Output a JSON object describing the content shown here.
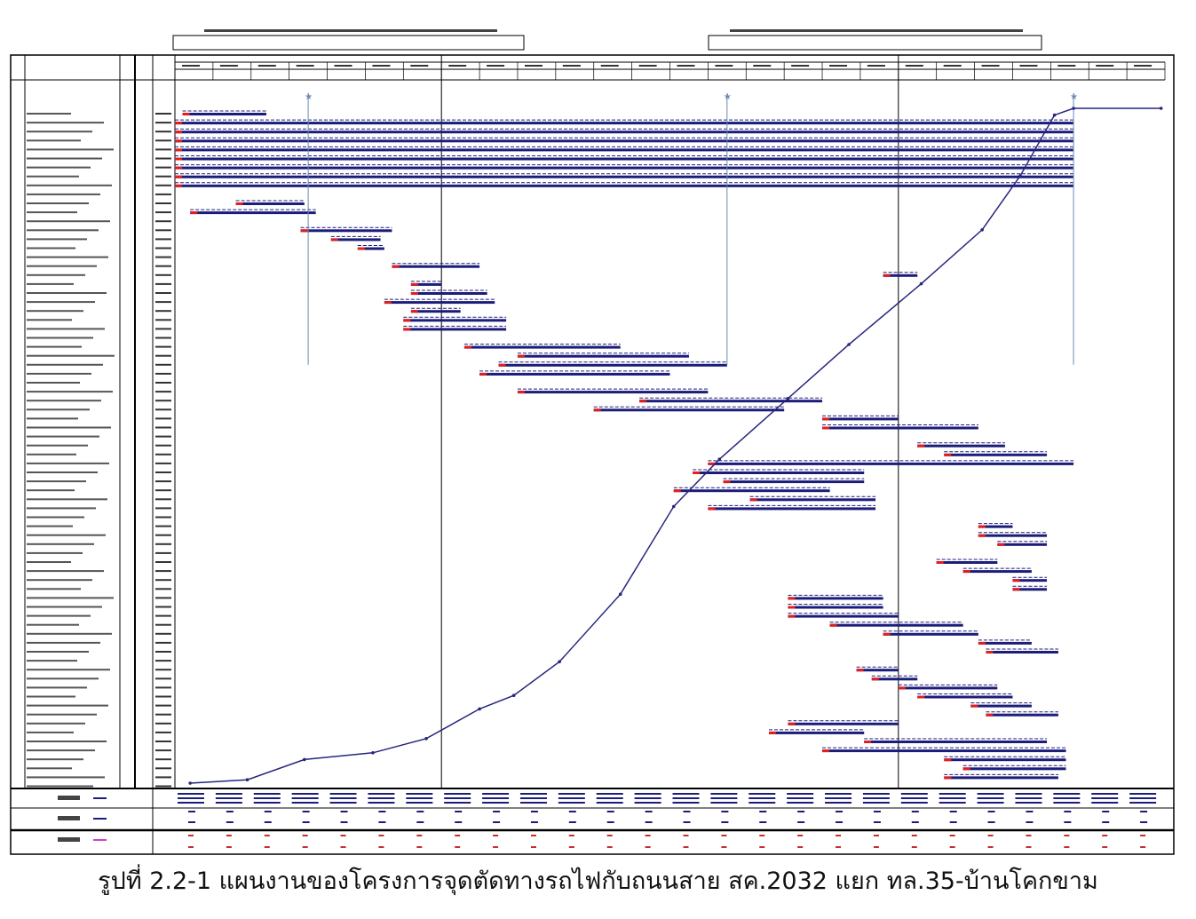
{
  "caption": "รูปที่ 2.2-1 แผนงานของโครงการจุดตัดทางรถไฟกับถนนสาย สค.2032 แยก ทล.35-บ้านโคกขาม",
  "colors": {
    "plan_bar": "#1c1c7a",
    "start_marker": "#e02020",
    "s_curve": "#26267e",
    "legend_pink": "#d040c0",
    "grid": "#000000"
  },
  "chart_data": {
    "type": "gantt",
    "time_unit": "month",
    "time_range": [
      0,
      26
    ],
    "year_dividers": [
      7,
      19
    ],
    "tasks": [
      {
        "row": 0,
        "start": 0.2,
        "end": 2.4
      },
      {
        "row": 1,
        "start": 0,
        "end": 23.6
      },
      {
        "row": 2,
        "start": 0,
        "end": 23.6
      },
      {
        "row": 3,
        "start": 0,
        "end": 23.6
      },
      {
        "row": 4,
        "start": 0,
        "end": 23.6
      },
      {
        "row": 5,
        "start": 0,
        "end": 23.6
      },
      {
        "row": 6,
        "start": 0,
        "end": 23.6
      },
      {
        "row": 7,
        "start": 0,
        "end": 23.6
      },
      {
        "row": 8,
        "start": 0,
        "end": 23.6
      },
      {
        "row": 10,
        "start": 1.6,
        "end": 3.4
      },
      {
        "row": 11,
        "start": 0.4,
        "end": 3.7
      },
      {
        "row": 13,
        "start": 3.3,
        "end": 5.7
      },
      {
        "row": 14,
        "start": 4.1,
        "end": 5.4
      },
      {
        "row": 15,
        "start": 4.8,
        "end": 5.5
      },
      {
        "row": 17,
        "start": 5.7,
        "end": 8.0
      },
      {
        "row": 18,
        "start": 18.6,
        "end": 19.5
      },
      {
        "row": 19,
        "start": 6.2,
        "end": 7.0
      },
      {
        "row": 20,
        "start": 6.2,
        "end": 8.2
      },
      {
        "row": 21,
        "start": 5.5,
        "end": 8.4
      },
      {
        "row": 22,
        "start": 6.2,
        "end": 7.5
      },
      {
        "row": 23,
        "start": 6.0,
        "end": 8.7
      },
      {
        "row": 24,
        "start": 6.0,
        "end": 8.7
      },
      {
        "row": 26,
        "start": 7.6,
        "end": 11.7
      },
      {
        "row": 27,
        "start": 9.0,
        "end": 13.5
      },
      {
        "row": 28,
        "start": 8.5,
        "end": 14.5
      },
      {
        "row": 29,
        "start": 8.0,
        "end": 13.0
      },
      {
        "row": 31,
        "start": 9.0,
        "end": 14.0
      },
      {
        "row": 32,
        "start": 12.2,
        "end": 17.0
      },
      {
        "row": 33,
        "start": 11.0,
        "end": 16.0
      },
      {
        "row": 34,
        "start": 17.0,
        "end": 19.0
      },
      {
        "row": 35,
        "start": 17.0,
        "end": 21.1
      },
      {
        "row": 37,
        "start": 19.5,
        "end": 21.8
      },
      {
        "row": 38,
        "start": 20.2,
        "end": 22.9
      },
      {
        "row": 39,
        "start": 14.0,
        "end": 23.6
      },
      {
        "row": 40,
        "start": 13.6,
        "end": 18.1
      },
      {
        "row": 41,
        "start": 14.4,
        "end": 18.1
      },
      {
        "row": 42,
        "start": 13.1,
        "end": 17.2
      },
      {
        "row": 43,
        "start": 15.1,
        "end": 18.4
      },
      {
        "row": 44,
        "start": 14.0,
        "end": 18.4
      },
      {
        "row": 46,
        "start": 21.1,
        "end": 22.0
      },
      {
        "row": 47,
        "start": 21.1,
        "end": 22.9
      },
      {
        "row": 48,
        "start": 21.6,
        "end": 22.9
      },
      {
        "row": 50,
        "start": 20.0,
        "end": 21.6
      },
      {
        "row": 51,
        "start": 20.7,
        "end": 22.5
      },
      {
        "row": 52,
        "start": 22.0,
        "end": 22.9
      },
      {
        "row": 53,
        "start": 22.0,
        "end": 22.9
      },
      {
        "row": 54,
        "start": 16.1,
        "end": 18.6
      },
      {
        "row": 55,
        "start": 16.1,
        "end": 18.6
      },
      {
        "row": 56,
        "start": 16.1,
        "end": 19.0
      },
      {
        "row": 57,
        "start": 17.2,
        "end": 20.7
      },
      {
        "row": 58,
        "start": 18.6,
        "end": 21.1
      },
      {
        "row": 59,
        "start": 21.1,
        "end": 22.5
      },
      {
        "row": 60,
        "start": 21.3,
        "end": 23.2
      },
      {
        "row": 62,
        "start": 17.9,
        "end": 19.0
      },
      {
        "row": 63,
        "start": 18.3,
        "end": 19.5
      },
      {
        "row": 64,
        "start": 19.0,
        "end": 21.6
      },
      {
        "row": 65,
        "start": 19.5,
        "end": 22.0
      },
      {
        "row": 66,
        "start": 20.9,
        "end": 22.5
      },
      {
        "row": 67,
        "start": 21.3,
        "end": 23.2
      },
      {
        "row": 68,
        "start": 16.1,
        "end": 19.0
      },
      {
        "row": 69,
        "start": 15.6,
        "end": 18.1
      },
      {
        "row": 70,
        "start": 18.1,
        "end": 22.9
      },
      {
        "row": 71,
        "start": 17.0,
        "end": 23.4
      },
      {
        "row": 72,
        "start": 20.2,
        "end": 23.4
      },
      {
        "row": 73,
        "start": 20.7,
        "end": 23.4
      },
      {
        "row": 74,
        "start": 20.2,
        "end": 23.2
      }
    ],
    "s_curve": {
      "x": [
        0.4,
        1.9,
        3.4,
        5.2,
        6.6,
        8.0,
        8.9,
        10.1,
        11.7,
        13.1,
        14.3,
        16.1,
        17.7,
        19.6,
        21.2,
        22.2,
        23.1,
        23.6,
        25.9
      ],
      "y": [
        0,
        0.5,
        3.5,
        4.5,
        6.6,
        11,
        13,
        18,
        28,
        41,
        48,
        57,
        65,
        74,
        82,
        90,
        99,
        100,
        100
      ],
      "ylim": [
        0,
        100
      ]
    },
    "milestones": [
      3.5,
      14.5,
      23.6
    ]
  }
}
